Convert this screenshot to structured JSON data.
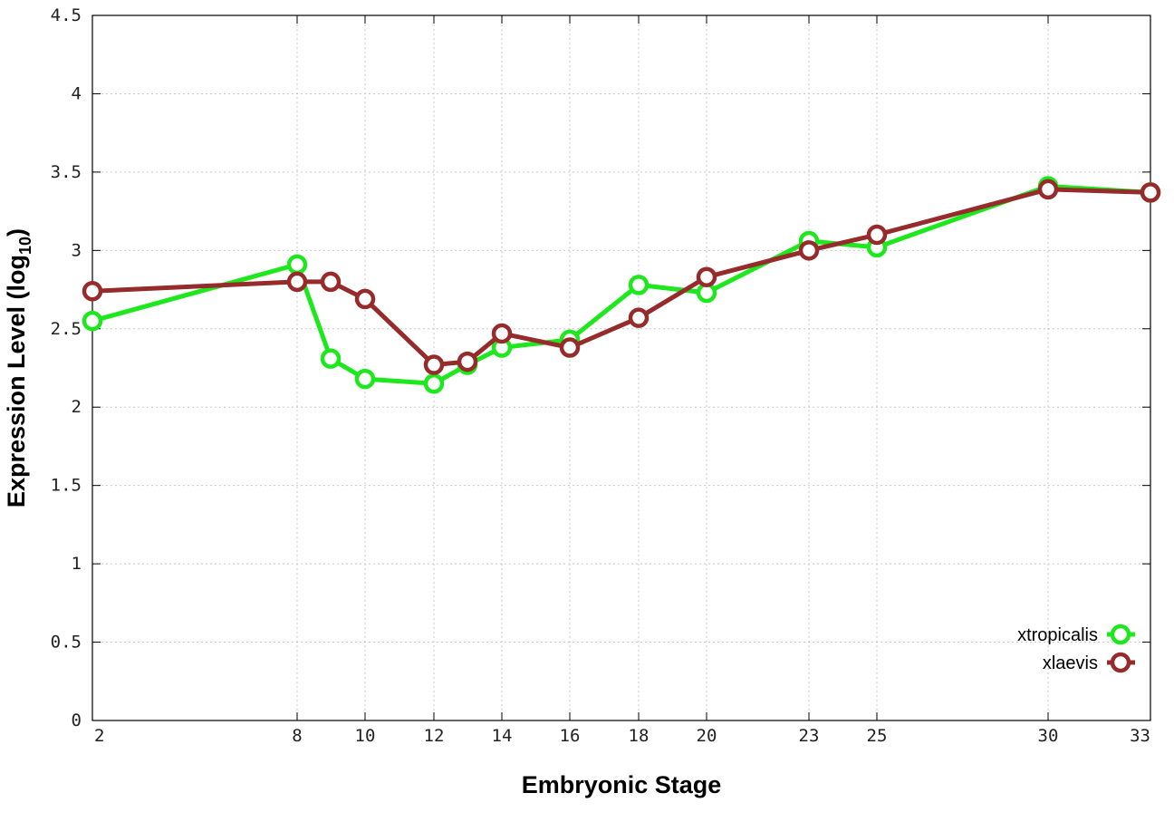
{
  "chart_data": {
    "type": "line",
    "xlabel": "Embryonic Stage",
    "ylabel_main": "Expression Level (log",
    "ylabel_sub": "10",
    "ylabel_close": ")",
    "ylim": [
      0,
      4.5
    ],
    "yticks": [
      "0",
      "0.5",
      "1",
      "1.5",
      "2",
      "2.5",
      "3",
      "3.5",
      "4",
      "4.5"
    ],
    "categories": [
      "2",
      "8",
      "9",
      "10",
      "12",
      "13",
      "14",
      "16",
      "18",
      "20",
      "23",
      "25",
      "30",
      "33"
    ],
    "xtick_labels": [
      "2",
      "8",
      "10",
      "12",
      "14",
      "16",
      "18",
      "20",
      "23",
      "25",
      "30",
      "33"
    ],
    "grid": true,
    "legend_position": "bottom-right",
    "series": [
      {
        "name": "xtropicalis",
        "color": "#1de81d",
        "values": [
          2.55,
          2.91,
          2.31,
          2.18,
          2.15,
          2.27,
          2.38,
          2.43,
          2.78,
          2.73,
          3.06,
          3.02,
          3.41,
          3.37
        ]
      },
      {
        "name": "xlaevis",
        "color": "#962b2b",
        "values": [
          2.74,
          2.8,
          2.8,
          2.69,
          2.27,
          2.29,
          2.47,
          2.38,
          2.57,
          2.83,
          3.0,
          3.1,
          3.39,
          3.37
        ]
      }
    ]
  }
}
